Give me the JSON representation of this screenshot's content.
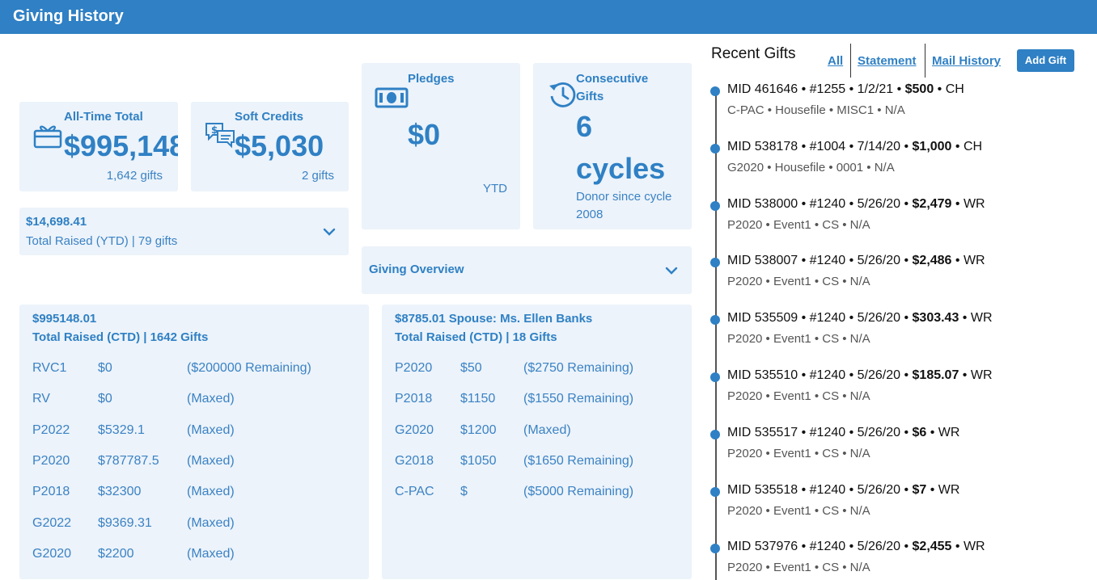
{
  "header": {
    "title": "Giving History"
  },
  "all_time": {
    "label": "All-Time Total",
    "value": "$995,148",
    "sub": "1,642 gifts"
  },
  "soft_credits": {
    "label": "Soft Credits",
    "value": "$5,030",
    "sub": "2 gifts"
  },
  "pledges": {
    "label": "Pledges",
    "value": "$0",
    "sub": "YTD"
  },
  "consecutive": {
    "label_line1": "Consecutive",
    "label_line2": "Gifts",
    "value_num": "6",
    "value_unit": "cycles",
    "sub_line1": "Donor since cycle",
    "sub_line2": "2008"
  },
  "ytd": {
    "amount": "$14,698.41",
    "label": "Total Raised (YTD) | 79 gifts"
  },
  "overview": {
    "label": "Giving Overview"
  },
  "ctd": {
    "amount": "$995148.01",
    "label": "Total Raised (CTD) | 1642 Gifts",
    "rows": [
      {
        "code": "RVC1",
        "amount": "$0",
        "status": "($200000 Remaining)"
      },
      {
        "code": "RV",
        "amount": "$0",
        "status": "(Maxed)"
      },
      {
        "code": "P2022",
        "amount": "$5329.1",
        "status": "(Maxed)"
      },
      {
        "code": "P2020",
        "amount": "$787787.5",
        "status": "(Maxed)"
      },
      {
        "code": "P2018",
        "amount": "$32300",
        "status": "(Maxed)"
      },
      {
        "code": "G2022",
        "amount": "$9369.31",
        "status": "(Maxed)"
      },
      {
        "code": "G2020",
        "amount": "$2200",
        "status": "(Maxed)"
      }
    ]
  },
  "spouse": {
    "amount": "$8785.01 Spouse: Ms. Ellen Banks",
    "label": "Total Raised (CTD) | 18 Gifts",
    "rows": [
      {
        "code": "P2020",
        "amount": "$50",
        "status": "($2750 Remaining)"
      },
      {
        "code": "P2018",
        "amount": "$1150",
        "status": "($1550 Remaining)"
      },
      {
        "code": "G2020",
        "amount": "$1200",
        "status": "(Maxed)"
      },
      {
        "code": "G2018",
        "amount": "$1050",
        "status": "($1650 Remaining)"
      },
      {
        "code": "C-PAC",
        "amount": "$",
        "status": "($5000 Remaining)"
      }
    ]
  },
  "recent": {
    "title": "Recent Gifts",
    "links": {
      "all": "All",
      "statement": "Statement",
      "mail_history": "Mail History"
    },
    "add_label": "Add Gift",
    "gifts": [
      {
        "pre": "MID 461646 • #1255 • 1/2/21 • ",
        "amount": "$500",
        "post": " • CH",
        "detail": "C-PAC • Housefile • MISC1 • N/A"
      },
      {
        "pre": "MID 538178 • #1004 • 7/14/20 • ",
        "amount": "$1,000",
        "post": " • CH",
        "detail": "G2020 • Housefile • 0001 • N/A"
      },
      {
        "pre": "MID 538000 • #1240 • 5/26/20 • ",
        "amount": "$2,479",
        "post": " • WR",
        "detail": "P2020 • Event1 • CS • N/A"
      },
      {
        "pre": "MID 538007 • #1240 • 5/26/20 • ",
        "amount": "$2,486",
        "post": " • WR",
        "detail": "P2020 • Event1 • CS • N/A"
      },
      {
        "pre": "MID 535509 • #1240 • 5/26/20 • ",
        "amount": "$303.43",
        "post": " • WR",
        "detail": "P2020 • Event1 • CS • N/A"
      },
      {
        "pre": "MID 535510 • #1240 • 5/26/20 • ",
        "amount": "$185.07",
        "post": " • WR",
        "detail": "P2020 • Event1 • CS • N/A"
      },
      {
        "pre": "MID 535517 • #1240 • 5/26/20 • ",
        "amount": "$6",
        "post": " • WR",
        "detail": "P2020 • Event1 • CS • N/A"
      },
      {
        "pre": "MID 535518 • #1240 • 5/26/20 • ",
        "amount": "$7",
        "post": " • WR",
        "detail": "P2020 • Event1 • CS • N/A"
      },
      {
        "pre": "MID 537976 • #1240 • 5/26/20 • ",
        "amount": "$2,455",
        "post": " • WR",
        "detail": "P2020 • Event1 • CS • N/A"
      }
    ]
  },
  "colors": {
    "brand": "#2f80c4",
    "card": "#ecf3fa"
  }
}
